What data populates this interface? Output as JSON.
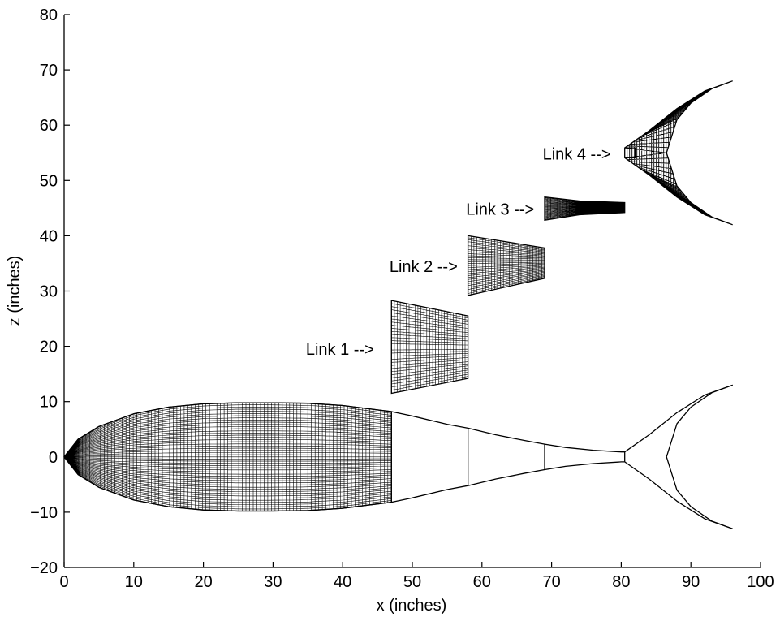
{
  "chart_data": {
    "type": "line",
    "title": "",
    "xlabel": "x (inches)",
    "ylabel": "z (inches)",
    "xlim": [
      0,
      100
    ],
    "ylim": [
      -20,
      80
    ],
    "xticks": [
      0,
      10,
      20,
      30,
      40,
      50,
      60,
      70,
      80,
      90,
      100
    ],
    "yticks": [
      -20,
      -10,
      0,
      10,
      20,
      30,
      40,
      50,
      60,
      70,
      80
    ],
    "ytick_labels": [
      "−20",
      "−10",
      "0",
      "10",
      "20",
      "30",
      "40",
      "50",
      "60",
      "70",
      "80"
    ],
    "grid": false,
    "series": [
      {
        "kind": "fish-outline",
        "body_top": [
          [
            0,
            0
          ],
          [
            2,
            3.2
          ],
          [
            5,
            5.5
          ],
          [
            10,
            7.8
          ],
          [
            15,
            9.0
          ],
          [
            20,
            9.6
          ],
          [
            25,
            9.8
          ],
          [
            30,
            9.8
          ],
          [
            35,
            9.7
          ],
          [
            40,
            9.3
          ],
          [
            45,
            8.5
          ],
          [
            47,
            8.2
          ],
          [
            50,
            7.4
          ],
          [
            55,
            5.9
          ],
          [
            58,
            5.2
          ],
          [
            62,
            4.0
          ],
          [
            66,
            3.0
          ],
          [
            69,
            2.3
          ],
          [
            72,
            1.7
          ],
          [
            76,
            1.2
          ],
          [
            80,
            0.9
          ],
          [
            80.5,
            0.9
          ]
        ],
        "body_bottom": [
          [
            0,
            0
          ],
          [
            2,
            -3.2
          ],
          [
            5,
            -5.5
          ],
          [
            10,
            -7.8
          ],
          [
            15,
            -9.0
          ],
          [
            20,
            -9.6
          ],
          [
            25,
            -9.8
          ],
          [
            30,
            -9.8
          ],
          [
            35,
            -9.7
          ],
          [
            40,
            -9.3
          ],
          [
            45,
            -8.5
          ],
          [
            47,
            -8.2
          ],
          [
            50,
            -7.4
          ],
          [
            55,
            -5.9
          ],
          [
            58,
            -5.2
          ],
          [
            62,
            -4.0
          ],
          [
            66,
            -3.0
          ],
          [
            69,
            -2.3
          ],
          [
            72,
            -1.7
          ],
          [
            76,
            -1.2
          ],
          [
            80,
            -0.9
          ],
          [
            80.5,
            -0.9
          ]
        ],
        "joints_x": [
          47,
          58,
          69,
          80.5
        ],
        "tail_upper_lead": [
          [
            80.5,
            0.9
          ],
          [
            84,
            4.0
          ],
          [
            88,
            8.0
          ],
          [
            92,
            11.2
          ],
          [
            96,
            13.0
          ]
        ],
        "tail_upper_trail": [
          [
            96,
            13.0
          ],
          [
            93,
            11.6
          ],
          [
            90,
            9.0
          ],
          [
            88,
            6.0
          ],
          [
            86.5,
            0
          ]
        ],
        "tail_lower_lead": [
          [
            80.5,
            -0.9
          ],
          [
            84,
            -4.0
          ],
          [
            88,
            -8.0
          ],
          [
            92,
            -11.2
          ],
          [
            96,
            -13.0
          ]
        ],
        "tail_lower_trail": [
          [
            96,
            -13.0
          ],
          [
            93,
            -11.6
          ],
          [
            90,
            -9.0
          ],
          [
            88,
            -6.0
          ],
          [
            86.5,
            0
          ]
        ],
        "meshed_region_x": [
          0,
          47
        ]
      },
      {
        "kind": "mesh-block",
        "name": "Link 1",
        "x_range": [
          47,
          58
        ],
        "z_top": [
          [
            47,
            28.3
          ],
          [
            58,
            25.5
          ]
        ],
        "z_bottom": [
          [
            47,
            11.5
          ],
          [
            58,
            14.2
          ]
        ]
      },
      {
        "kind": "mesh-block",
        "name": "Link 2",
        "x_range": [
          58,
          69
        ],
        "z_top": [
          [
            58,
            40.0
          ],
          [
            69,
            37.8
          ]
        ],
        "z_bottom": [
          [
            58,
            29.2
          ],
          [
            69,
            32.3
          ]
        ]
      },
      {
        "kind": "mesh-block",
        "name": "Link 3",
        "x_range": [
          69,
          80.5
        ],
        "z_top": [
          [
            69,
            47.0
          ],
          [
            74,
            46.3
          ],
          [
            80.5,
            46.0
          ]
        ],
        "z_bottom": [
          [
            69,
            42.8
          ],
          [
            74,
            43.8
          ],
          [
            80.5,
            44.2
          ]
        ]
      },
      {
        "kind": "mesh-tail",
        "name": "Link 4",
        "x_range": [
          80.5,
          96
        ],
        "center_z": 55,
        "peduncle_x": [
          80.5,
          82
        ],
        "peduncle_halfwidth": 0.9
      }
    ],
    "annotations": [
      {
        "text": "Link 1 -->",
        "x": 44.5,
        "z": 19.5
      },
      {
        "text": "Link 2 -->",
        "x": 56.5,
        "z": 34.5
      },
      {
        "text": "Link 3 -->",
        "x": 67.5,
        "z": 44.8
      },
      {
        "text": "Link 4 -->",
        "x": 78.5,
        "z": 54.8
      }
    ]
  }
}
